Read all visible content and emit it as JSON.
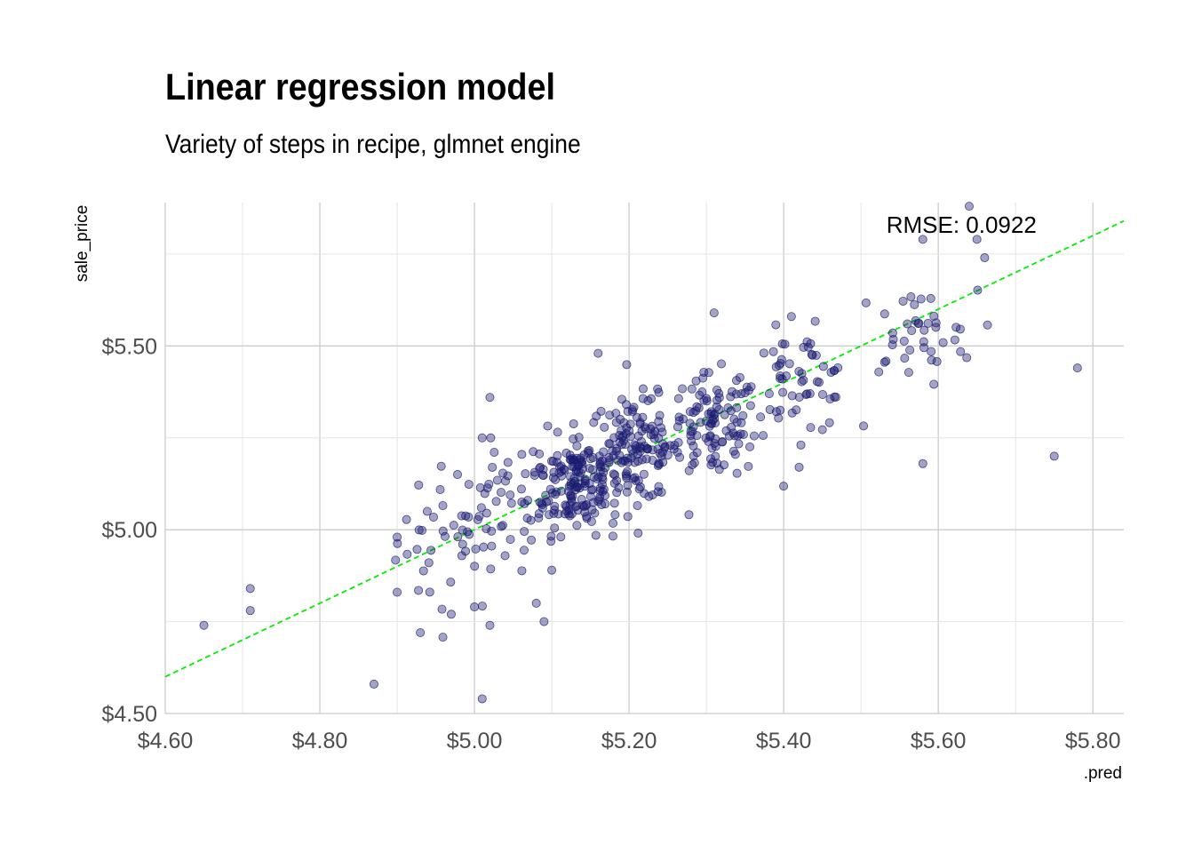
{
  "chart_data": {
    "type": "scatter",
    "title": "Linear regression model",
    "subtitle": "Variety of steps in recipe, glmnet engine",
    "xlabel": ".pred",
    "ylabel": "sale_price",
    "xlim": [
      4.6,
      5.84
    ],
    "ylim": [
      4.5,
      5.89
    ],
    "x_ticks": [
      4.6,
      4.8,
      5.0,
      5.2,
      5.4,
      5.6,
      5.8
    ],
    "x_tick_labels": [
      "$4.60",
      "$4.80",
      "$5.00",
      "$5.20",
      "$5.40",
      "$5.60",
      "$5.80"
    ],
    "y_ticks": [
      4.5,
      5.0,
      5.5
    ],
    "y_tick_labels": [
      "$4.50",
      "$5.00",
      "$5.50"
    ],
    "grid": true,
    "reference_line": {
      "slope": 1,
      "intercept": 0,
      "style": "dashed",
      "color": "#00ee00"
    },
    "annotation": {
      "text": "RMSE:  0.0922",
      "x": 5.63,
      "y": 5.83
    },
    "point_color": "#191970",
    "outliers": [
      [
        4.65,
        4.74
      ],
      [
        4.71,
        4.84
      ],
      [
        4.71,
        4.78
      ],
      [
        4.87,
        4.58
      ],
      [
        4.9,
        4.98
      ],
      [
        4.9,
        4.83
      ],
      [
        4.93,
        4.72
      ],
      [
        4.97,
        4.77
      ],
      [
        5.01,
        4.54
      ],
      [
        5.02,
        4.74
      ],
      [
        5.0,
        4.79
      ],
      [
        5.09,
        4.75
      ],
      [
        5.08,
        4.8
      ],
      [
        5.1,
        4.89
      ],
      [
        5.16,
        5.48
      ],
      [
        5.58,
        5.18
      ],
      [
        5.64,
        5.88
      ],
      [
        5.65,
        5.79
      ],
      [
        5.66,
        5.74
      ],
      [
        5.58,
        5.79
      ],
      [
        5.75,
        5.2
      ],
      [
        5.78,
        5.44
      ],
      [
        5.42,
        5.17
      ],
      [
        5.01,
        5.25
      ],
      [
        5.02,
        5.36
      ],
      [
        5.31,
        5.59
      ],
      [
        5.41,
        5.58
      ]
    ],
    "clusters": [
      {
        "x": 4.97,
        "y": 4.97,
        "sx": 0.035,
        "sy": 0.1,
        "n": 40
      },
      {
        "x": 5.04,
        "y": 5.05,
        "sx": 0.03,
        "sy": 0.08,
        "n": 40
      },
      {
        "x": 5.13,
        "y": 5.13,
        "sx": 0.03,
        "sy": 0.07,
        "n": 170
      },
      {
        "x": 5.21,
        "y": 5.22,
        "sx": 0.03,
        "sy": 0.07,
        "n": 130
      },
      {
        "x": 5.31,
        "y": 5.28,
        "sx": 0.03,
        "sy": 0.07,
        "n": 110
      },
      {
        "x": 5.42,
        "y": 5.4,
        "sx": 0.035,
        "sy": 0.07,
        "n": 60
      },
      {
        "x": 5.57,
        "y": 5.53,
        "sx": 0.04,
        "sy": 0.06,
        "n": 40
      }
    ]
  }
}
